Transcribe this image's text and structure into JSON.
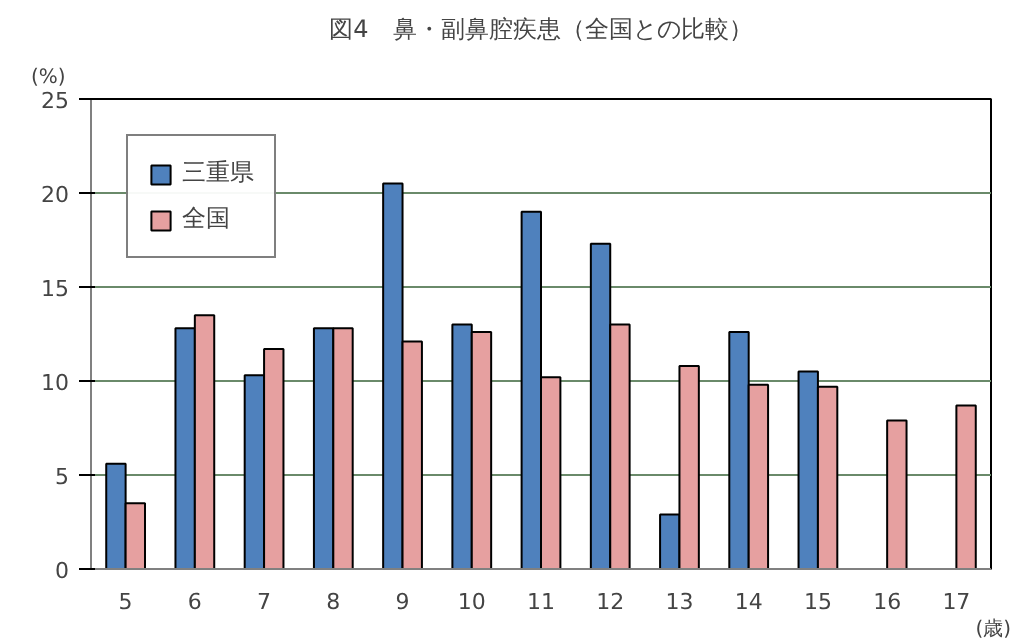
{
  "chart_data": {
    "type": "bar",
    "title": "図4　鼻・副鼻腔疾患（全国との比較）",
    "ylabel": "(%)",
    "xlabel": "(歳)",
    "categories": [
      "5",
      "6",
      "7",
      "8",
      "9",
      "10",
      "11",
      "12",
      "13",
      "14",
      "15",
      "16",
      "17"
    ],
    "series": [
      {
        "name": "三重県",
        "color": "#4f81bd",
        "values": [
          5.6,
          12.8,
          10.3,
          12.8,
          20.5,
          13.0,
          19.0,
          17.3,
          2.9,
          12.6,
          10.5,
          null,
          null
        ]
      },
      {
        "name": "全国",
        "color": "#e6a0a0",
        "values": [
          3.5,
          13.5,
          11.7,
          12.8,
          12.1,
          12.6,
          10.2,
          13.0,
          10.8,
          9.8,
          9.7,
          7.9,
          8.7
        ]
      }
    ],
    "ylim": [
      0,
      25
    ],
    "yticks": [
      0,
      5,
      10,
      15,
      20,
      25
    ],
    "grid": "y",
    "legend": "top left"
  }
}
